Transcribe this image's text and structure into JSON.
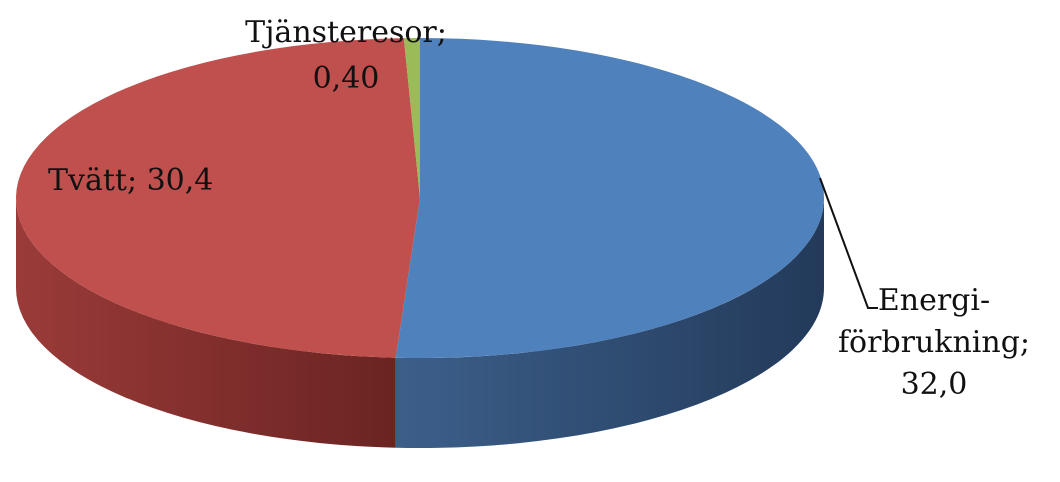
{
  "chart_data": {
    "type": "pie",
    "variant": "3d",
    "start_angle_deg": 90,
    "direction": "clockwise",
    "slices": [
      {
        "label_lines": [
          "Energi-",
          "förbrukning;",
          "32,0"
        ],
        "category": "Energiförbrukning",
        "value": 32.0,
        "color": "#4f81bd",
        "side_dark": "#233a5a",
        "side_light": "#3c5f8a",
        "has_leader_line": true
      },
      {
        "label_lines": [
          "Tvätt; 30,4"
        ],
        "category": "Tvätt",
        "value": 30.4,
        "color": "#c0504d",
        "side_dark": "#6a2422",
        "side_light": "#9a3b39",
        "has_leader_line": false
      },
      {
        "label_lines": [
          "Tjänsteresor;",
          "0,40"
        ],
        "category": "Tjänsteresor",
        "value": 0.4,
        "color": "#9bbb59",
        "side_dark": "#56692f",
        "side_light": "#7b9545",
        "has_leader_line": false
      }
    ]
  }
}
